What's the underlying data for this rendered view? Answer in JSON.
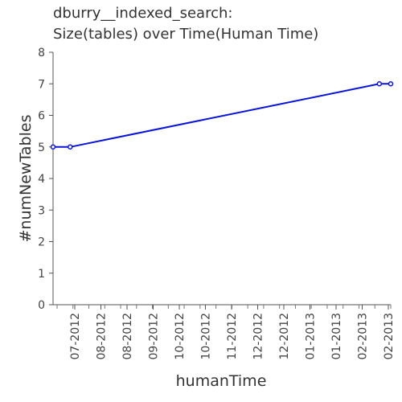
{
  "chart_data": {
    "type": "line",
    "title_lines": [
      "dburry__indexed_search:",
      "Size(tables) over Time(Human Time)"
    ],
    "xlabel": "humanTime",
    "ylabel": "#numNewTables",
    "ylim": [
      0,
      8
    ],
    "y_ticks": [
      0,
      1,
      2,
      3,
      4,
      5,
      6,
      7,
      8
    ],
    "x_tick_labels": [
      "07-2012",
      "08-2012",
      "08-2012",
      "09-2012",
      "10-2012",
      "10-2012",
      "11-2012",
      "12-2012",
      "12-2012",
      "01-2013",
      "01-2013",
      "02-2013",
      "02-2013"
    ],
    "grid": false,
    "series": [
      {
        "color": "#0a14d6",
        "points": [
          {
            "x": "2012-06-21",
            "y": 5
          },
          {
            "x": "2012-07-03",
            "y": 5
          },
          {
            "x": "2013-02-05",
            "y": 7
          },
          {
            "x": "2013-02-13",
            "y": 7
          }
        ]
      }
    ]
  }
}
